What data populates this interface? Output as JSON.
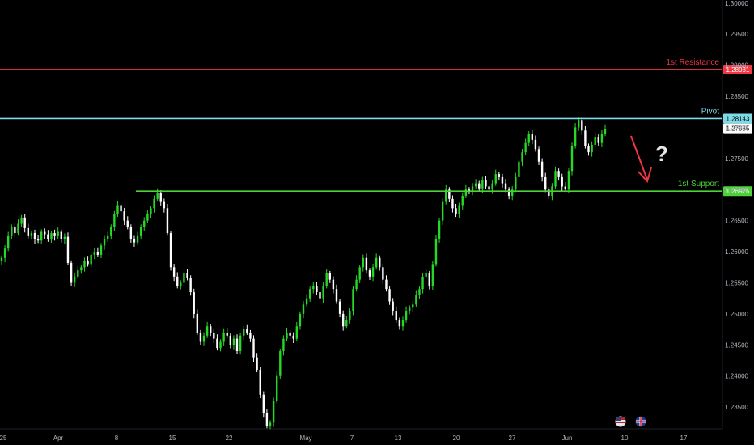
{
  "chart_data": {
    "type": "candlestick",
    "title": "",
    "xlabel": "",
    "ylabel": "",
    "ylim": [
      1.2315,
      1.3005
    ],
    "grid": false,
    "y_ticks": [
      "1.30000",
      "1.29500",
      "1.29000",
      "1.28500",
      "1.28000",
      "1.27500",
      "1.27000",
      "1.26500",
      "1.26000",
      "1.25500",
      "1.25000",
      "1.24500",
      "1.24000",
      "1.23500"
    ],
    "x_ticks": [
      "25",
      "Apr",
      "8",
      "15",
      "22",
      "May",
      "7",
      "13",
      "20",
      "27",
      "Jun",
      "10",
      "17"
    ],
    "current_price": 1.27985,
    "current_price_label": "1.27985",
    "levels": [
      {
        "name": "1st Resistance",
        "value": 1.28931,
        "value_label": "1.28931",
        "color": "#f23645"
      },
      {
        "name": "Pivot",
        "value": 1.28143,
        "value_label": "1.28143",
        "color": "#7fdbe8"
      },
      {
        "name": "1st Support",
        "value": 1.26975,
        "value_label": "1.26975",
        "color": "#4cd137"
      }
    ],
    "annotation": {
      "text": "?",
      "arrow_color": "#f23645"
    },
    "colors": {
      "up": "#26d926",
      "down": "#ffffff",
      "background": "#000000"
    },
    "closes": [
      1.259,
      1.2605,
      1.2625,
      1.264,
      1.263,
      1.2645,
      1.2655,
      1.2638,
      1.2625,
      1.263,
      1.262,
      1.2618,
      1.2632,
      1.2628,
      1.262,
      1.263,
      1.2625,
      1.2632,
      1.262,
      1.2624,
      1.2582,
      1.255,
      1.256,
      1.257,
      1.2575,
      1.2585,
      1.258,
      1.2595,
      1.26,
      1.2595,
      1.261,
      1.262,
      1.2625,
      1.264,
      1.266,
      1.2675,
      1.2665,
      1.265,
      1.264,
      1.262,
      1.2615,
      1.2625,
      1.264,
      1.265,
      1.266,
      1.267,
      1.2685,
      1.2695,
      1.268,
      1.267,
      1.263,
      1.2575,
      1.256,
      1.2545,
      1.255,
      1.2565,
      1.2558,
      1.2535,
      1.25,
      1.247,
      1.2455,
      1.2465,
      1.248,
      1.247,
      1.246,
      1.2445,
      1.2455,
      1.247,
      1.2465,
      1.245,
      1.246,
      1.244,
      1.2465,
      1.2475,
      1.247,
      1.246,
      1.243,
      1.241,
      1.237,
      1.234,
      1.232,
      1.2325,
      1.236,
      1.24,
      1.244,
      1.246,
      1.247,
      1.2465,
      1.246,
      1.248,
      1.25,
      1.2515,
      1.2525,
      1.254,
      1.2545,
      1.2535,
      1.2525,
      1.2545,
      1.2565,
      1.2555,
      1.254,
      1.252,
      1.25,
      1.248,
      1.249,
      1.2505,
      1.254,
      1.2555,
      1.2575,
      1.259,
      1.257,
      1.256,
      1.2575,
      1.259,
      1.2575,
      1.2555,
      1.254,
      1.252,
      1.2505,
      1.249,
      1.248,
      1.249,
      1.2505,
      1.251,
      1.2515,
      1.253,
      1.254,
      1.256,
      1.2565,
      1.2545,
      1.258,
      1.262,
      1.265,
      1.268,
      1.27,
      1.2685,
      1.267,
      1.266,
      1.2675,
      1.269,
      1.27,
      1.2698,
      1.2705,
      1.271,
      1.2702,
      1.2715,
      1.2705,
      1.27,
      1.271,
      1.2725,
      1.272,
      1.271,
      1.27,
      1.269,
      1.27,
      1.272,
      1.2745,
      1.276,
      1.2775,
      1.279,
      1.278,
      1.2765,
      1.2745,
      1.272,
      1.27,
      1.269,
      1.2705,
      1.273,
      1.272,
      1.2705,
      1.27,
      1.273,
      1.277,
      1.28,
      1.2812,
      1.2795,
      1.277,
      1.276,
      1.2772,
      1.2785,
      1.2775,
      1.279,
      1.2798
    ]
  }
}
